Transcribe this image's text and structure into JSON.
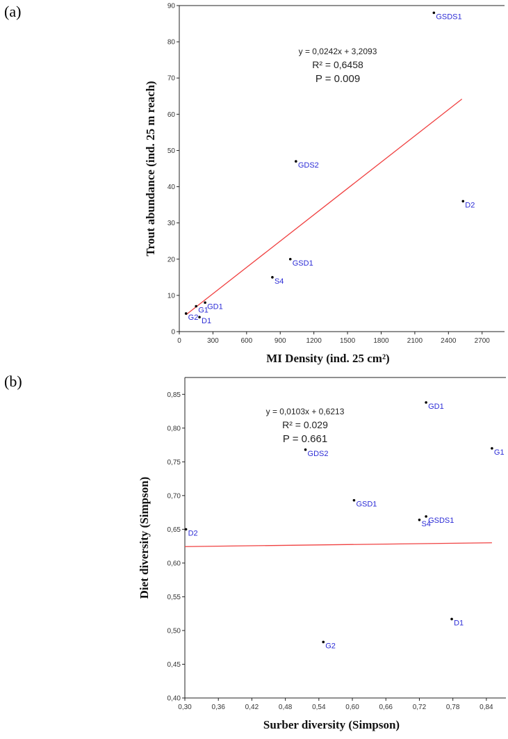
{
  "panels": {
    "a": "(a)",
    "b": "(b)"
  },
  "chart_data": [
    {
      "type": "scatter",
      "xlabel": "MI Density (ind. 25 cm²)",
      "ylabel": "Trout abundance (ind. 25 m reach)",
      "xlim": [
        0,
        2900
      ],
      "ylim": [
        0,
        90
      ],
      "xticks": [
        "0",
        "300",
        "600",
        "900",
        "1200",
        "1500",
        "1800",
        "2100",
        "2400",
        "2700"
      ],
      "yticks": [
        "0",
        "10",
        "20",
        "30",
        "40",
        "50",
        "60",
        "70",
        "80",
        "90"
      ],
      "equation": "y = 0,0242x + 3,2093",
      "r2": "R² = 0,6458",
      "p": "P = 0.009",
      "trendline": {
        "slope": 0.0242,
        "intercept": 3.2093,
        "x_range": [
          60,
          2520
        ]
      },
      "points": [
        {
          "label": "GSDS1",
          "x": 2270,
          "y": 88
        },
        {
          "label": "GDS2",
          "x": 1040,
          "y": 47
        },
        {
          "label": "D2",
          "x": 2530,
          "y": 36
        },
        {
          "label": "GSD1",
          "x": 990,
          "y": 20
        },
        {
          "label": "S4",
          "x": 830,
          "y": 15
        },
        {
          "label": "GD1",
          "x": 230,
          "y": 8
        },
        {
          "label": "G1",
          "x": 150,
          "y": 7
        },
        {
          "label": "G2",
          "x": 60,
          "y": 5
        },
        {
          "label": "D1",
          "x": 180,
          "y": 4
        }
      ]
    },
    {
      "type": "scatter",
      "xlabel": "Surber diversity (Simpson)",
      "ylabel": "Diet diversity (Simpson)",
      "xlim": [
        0.3,
        0.875
      ],
      "ylim": [
        0.4,
        0.875
      ],
      "xticks": [
        "0,30",
        "0,36",
        "0,42",
        "0,48",
        "0,54",
        "0,60",
        "0,66",
        "0,72",
        "0,78",
        "0,84"
      ],
      "yticks": [
        "0,40",
        "0,45",
        "0,50",
        "0,55",
        "0,60",
        "0,65",
        "0,70",
        "0,75",
        "0,80",
        "0,85"
      ],
      "equation": "y = 0,0103x + 0,6213",
      "r2": "R² = 0.029",
      "p": "P = 0.661",
      "trendline": {
        "slope": 0.0103,
        "intercept": 0.6213,
        "x_range": [
          0.3,
          0.85
        ]
      },
      "points": [
        {
          "label": "GD1",
          "x": 0.732,
          "y": 0.838
        },
        {
          "label": "G1",
          "x": 0.85,
          "y": 0.77
        },
        {
          "label": "GDS2",
          "x": 0.516,
          "y": 0.768
        },
        {
          "label": "GSD1",
          "x": 0.603,
          "y": 0.693
        },
        {
          "label": "GSDS1",
          "x": 0.732,
          "y": 0.669
        },
        {
          "label": "S4",
          "x": 0.72,
          "y": 0.664
        },
        {
          "label": "D2",
          "x": 0.302,
          "y": 0.65
        },
        {
          "label": "D1",
          "x": 0.778,
          "y": 0.517
        },
        {
          "label": "G2",
          "x": 0.548,
          "y": 0.483
        }
      ]
    }
  ]
}
